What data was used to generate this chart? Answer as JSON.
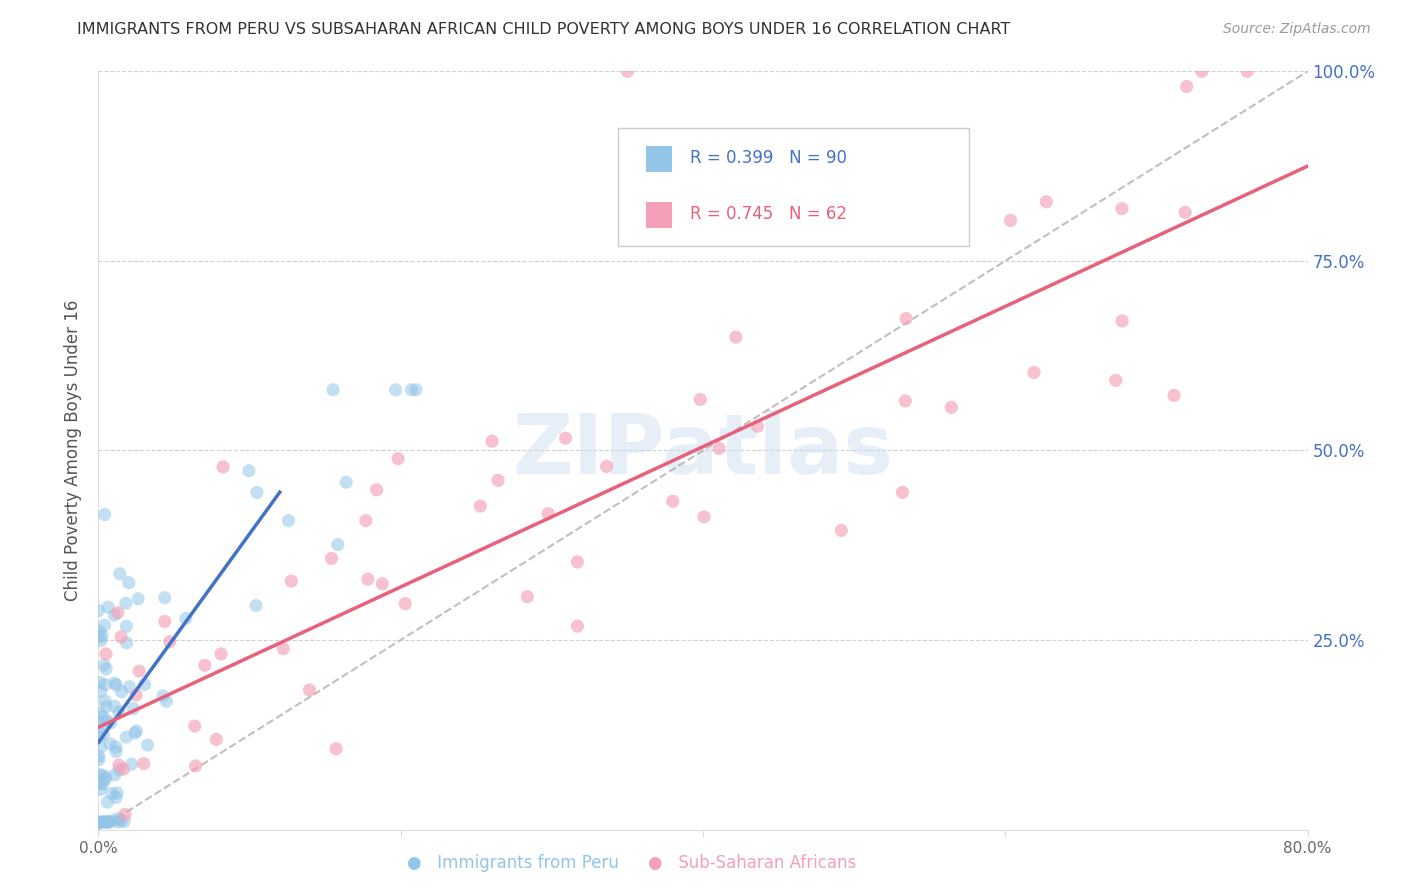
{
  "title": "IMMIGRANTS FROM PERU VS SUBSAHARAN AFRICAN CHILD POVERTY AMONG BOYS UNDER 16 CORRELATION CHART",
  "source": "Source: ZipAtlas.com",
  "ylabel": "Child Poverty Among Boys Under 16",
  "watermark": "ZIPatlas",
  "xlim": [
    0,
    0.8
  ],
  "ylim": [
    0,
    1.0
  ],
  "blue_color": "#92C5E8",
  "pink_color": "#F4A0B8",
  "blue_line_color": "#4472C4",
  "pink_line_color": "#E8607A",
  "grid_color": "#CCCCCC",
  "right_axis_color": "#4472C4",
  "blue_seed": 12,
  "pink_seed": 55,
  "peru_N": 90,
  "africa_N": 62,
  "peru_line_x": [
    0.0,
    0.12
  ],
  "peru_line_y": [
    0.115,
    0.445
  ],
  "africa_line_x": [
    0.0,
    0.8
  ],
  "africa_line_y": [
    0.135,
    0.875
  ],
  "diag_line_x": [
    0.0,
    0.8
  ],
  "diag_line_y": [
    0.0,
    1.0
  ],
  "legend_r_blue": "R = 0.399",
  "legend_n_blue": "N = 90",
  "legend_r_pink": "R = 0.745",
  "legend_n_pink": "N = 62",
  "bottom_legend_blue": "Immigrants from Peru",
  "bottom_legend_pink": "Sub-Saharan Africans"
}
